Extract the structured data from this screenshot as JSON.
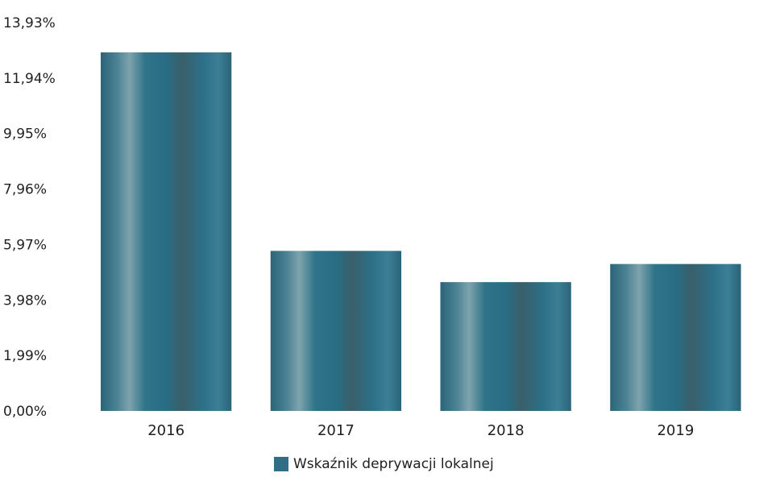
{
  "chart_data": {
    "type": "bar",
    "title": "",
    "xlabel": "",
    "ylabel": "",
    "categories": [
      "2016",
      "2017",
      "2018",
      "2019"
    ],
    "series": [
      {
        "name": "Wskaźnik deprywacji lokalnej",
        "values": [
          12.86,
          5.74,
          4.62,
          5.27
        ],
        "color": "#2f6e85"
      }
    ],
    "ylim": [
      0,
      13.93
    ],
    "yticks": [
      "0,00%",
      "1,99%",
      "3,98%",
      "5,97%",
      "7,96%",
      "9,95%",
      "11,94%",
      "13,93%"
    ],
    "ytick_values": [
      0,
      1.99,
      3.98,
      5.97,
      7.96,
      9.95,
      11.94,
      13.93
    ],
    "grid": false,
    "legend_position": "bottom-center"
  }
}
